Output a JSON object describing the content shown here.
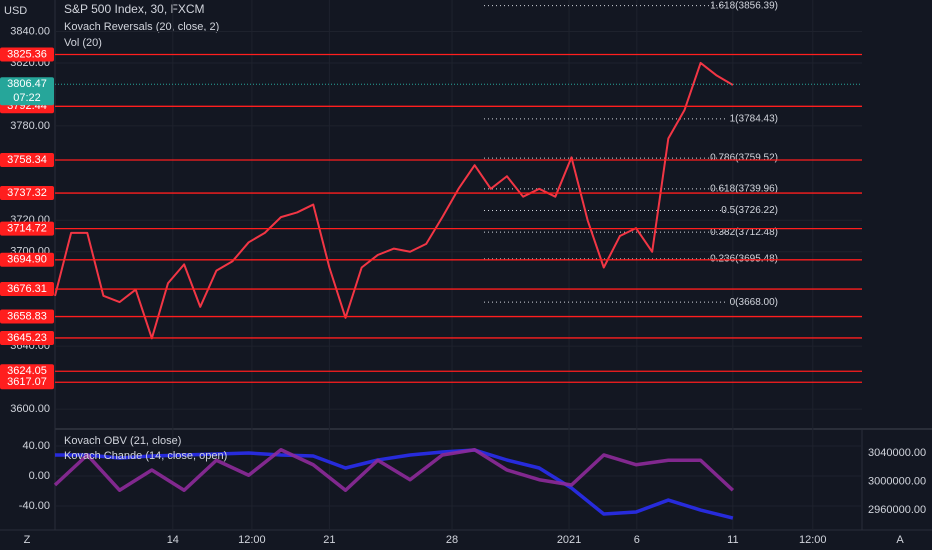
{
  "chart_data": [
    {
      "type": "line",
      "title": "S&P 500 Index, 30, FXCM",
      "indicators": [
        "Kovach Reversals (20, close, 2)",
        "Vol (20)"
      ],
      "y_axis_label": "USD",
      "x": [
        0,
        2,
        4,
        6,
        8,
        10,
        12,
        14,
        16,
        18,
        20,
        22,
        24,
        26,
        28,
        30,
        32,
        34,
        36,
        38,
        40,
        42,
        44,
        46,
        48,
        50,
        52,
        54,
        56,
        58,
        60,
        62,
        64,
        66,
        68,
        70,
        72,
        74,
        76,
        78,
        80,
        82,
        84
      ],
      "series": [
        {
          "color": "#f23645",
          "values": [
            3672,
            3712,
            3712,
            3672,
            3668,
            3676,
            3645,
            3680,
            3692,
            3665,
            3688,
            3694,
            3706,
            3712,
            3722,
            3725,
            3730,
            3690,
            3658,
            3690,
            3698,
            3702,
            3700,
            3705,
            3722,
            3740,
            3755,
            3740,
            3748,
            3735,
            3740,
            3735,
            3760,
            3720,
            3690,
            3710,
            3715,
            3700,
            3772,
            3790,
            3820,
            3812,
            3806
          ]
        }
      ],
      "xlim": [
        0,
        100
      ],
      "xticks": [
        {
          "value": 14.6,
          "label": "14"
        },
        {
          "value": 24.4,
          "label": "12:00"
        },
        {
          "value": 34.0,
          "label": "21"
        },
        {
          "value": 49.2,
          "label": "28"
        },
        {
          "value": 63.7,
          "label": "2021"
        },
        {
          "value": 72.1,
          "label": "6"
        },
        {
          "value": 84.0,
          "label": "11"
        },
        {
          "value": 93.9,
          "label": "12:00"
        }
      ],
      "ylim": [
        3588,
        3860
      ],
      "yticks": [
        {
          "value": 3600,
          "label": "3600.00"
        },
        {
          "value": 3640,
          "label": "3640.00"
        },
        {
          "value": 3700,
          "label": "3700.00"
        },
        {
          "value": 3720,
          "label": "3720.00"
        },
        {
          "value": 3780,
          "label": "3780.00"
        },
        {
          "value": 3820,
          "label": "3820.00"
        },
        {
          "value": 3840,
          "label": "3840.00"
        }
      ],
      "level_color": "#ff1e1e",
      "levels": [
        3825.36,
        3792.44,
        3758.34,
        3737.32,
        3714.72,
        {
          "value": 3694.9,
          "label": "3694.90"
        },
        3676.31,
        3658.83,
        3645.23,
        3624.05,
        3617.07
      ],
      "fib": [
        {
          "value": 3856.39,
          "label": "1.618(3856.39)"
        },
        {
          "value": 3784.43,
          "label": "1(3784.43)"
        },
        {
          "value": 3759.52,
          "label": "0.786(3759.52)"
        },
        {
          "value": 3739.96,
          "label": "0.618(3739.96)"
        },
        {
          "value": 3726.22,
          "label": "0.5(3726.22)"
        },
        {
          "value": 3712.48,
          "label": "0.382(3712.48)"
        },
        {
          "value": 3695.48,
          "label": "0.236(3695.48)"
        },
        {
          "value": 3668,
          "label": "0(3668.00)"
        }
      ],
      "last_price": 3806.47,
      "countdown": "07:22"
    },
    {
      "type": "line",
      "x": [
        0,
        4,
        8,
        12,
        16,
        20,
        24,
        28,
        32,
        36,
        40,
        44,
        48,
        52,
        56,
        60,
        64,
        68,
        72,
        76,
        80,
        84
      ],
      "series": [
        {
          "name": "Kovach OBV (21, close)",
          "color": "#2a2ef0",
          "axis": "y2",
          "values": [
            3037200,
            3037200,
            3033000,
            3035800,
            3037200,
            3038600,
            3040000,
            3037200,
            3035800,
            3019000,
            3030200,
            3037200,
            3041400,
            3044200,
            3030200,
            3019000,
            2990900,
            2954400,
            2957200,
            2974000,
            2960000,
            2948700
          ]
        },
        {
          "name": "Kovach Chande (14, close, open)",
          "color": "#8e2a9a",
          "values": [
            -12,
            28,
            -19,
            8,
            -19,
            21,
            1,
            35,
            15,
            -19,
            21,
            -5,
            28,
            35,
            8,
            -5,
            -12,
            28,
            15,
            21,
            21,
            -19
          ]
        }
      ],
      "ylim": [
        -72,
        61.3
      ],
      "yticks": [
        {
          "value": -40,
          "label": "-40.00"
        },
        {
          "value": 0,
          "label": "0.00"
        },
        {
          "value": 40,
          "label": "40.00"
        }
      ],
      "y2lim": [
        2932000,
        3072300
      ],
      "y2ticks": [
        {
          "value": 2960000,
          "label": "2960000.00"
        },
        {
          "value": 3000000,
          "label": "3000000.00"
        },
        {
          "value": 3040000,
          "label": "3040000.00"
        }
      ]
    },
    {
      "type": "controls",
      "left": "Z",
      "right": "A"
    }
  ]
}
